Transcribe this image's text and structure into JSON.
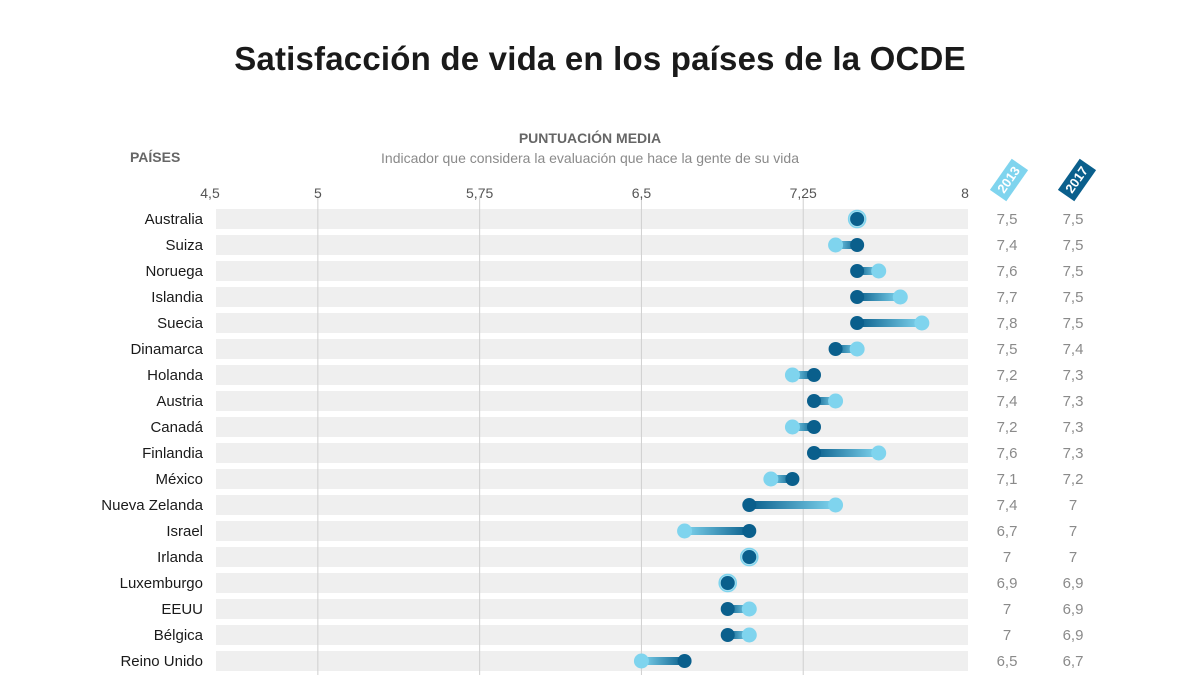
{
  "title": "Satisfacción de vida en los países de la OCDE",
  "header": {
    "countries_label": "PAÍSES",
    "measure_label": "PUNTUACIÓN MEDIA",
    "measure_desc": "Indicador que considera la evaluación que hace la gente de su vida",
    "year_a": "2013",
    "year_b": "2017"
  },
  "colors": {
    "year_a": "#7fd4ee",
    "year_b": "#0a5f8c",
    "row_bg": "#efefef",
    "grid": "#cfcfcf"
  },
  "chart_data": {
    "type": "dumbbell",
    "xlim": [
      4.5,
      8
    ],
    "ticks": [
      {
        "value": 4.5,
        "label": "4,5"
      },
      {
        "value": 5,
        "label": "5"
      },
      {
        "value": 5.75,
        "label": "5,75"
      },
      {
        "value": 6.5,
        "label": "6,5"
      },
      {
        "value": 7.25,
        "label": "7,25"
      },
      {
        "value": 8,
        "label": "8"
      }
    ],
    "series": [
      {
        "name": "2013"
      },
      {
        "name": "2017"
      }
    ],
    "rows": [
      {
        "country": "Australia",
        "v2013": 7.5,
        "v2017": 7.5,
        "l2013": "7,5",
        "l2017": "7,5"
      },
      {
        "country": "Suiza",
        "v2013": 7.4,
        "v2017": 7.5,
        "l2013": "7,4",
        "l2017": "7,5"
      },
      {
        "country": "Noruega",
        "v2013": 7.6,
        "v2017": 7.5,
        "l2013": "7,6",
        "l2017": "7,5"
      },
      {
        "country": "Islandia",
        "v2013": 7.7,
        "v2017": 7.5,
        "l2013": "7,7",
        "l2017": "7,5"
      },
      {
        "country": "Suecia",
        "v2013": 7.8,
        "v2017": 7.5,
        "l2013": "7,8",
        "l2017": "7,5"
      },
      {
        "country": "Dinamarca",
        "v2013": 7.5,
        "v2017": 7.4,
        "l2013": "7,5",
        "l2017": "7,4"
      },
      {
        "country": "Holanda",
        "v2013": 7.2,
        "v2017": 7.3,
        "l2013": "7,2",
        "l2017": "7,3"
      },
      {
        "country": "Austria",
        "v2013": 7.4,
        "v2017": 7.3,
        "l2013": "7,4",
        "l2017": "7,3"
      },
      {
        "country": "Canadá",
        "v2013": 7.2,
        "v2017": 7.3,
        "l2013": "7,2",
        "l2017": "7,3"
      },
      {
        "country": "Finlandia",
        "v2013": 7.6,
        "v2017": 7.3,
        "l2013": "7,6",
        "l2017": "7,3"
      },
      {
        "country": "México",
        "v2013": 7.1,
        "v2017": 7.2,
        "l2013": "7,1",
        "l2017": "7,2"
      },
      {
        "country": "Nueva Zelanda",
        "v2013": 7.4,
        "v2017": 7.0,
        "l2013": "7,4",
        "l2017": "7"
      },
      {
        "country": "Israel",
        "v2013": 6.7,
        "v2017": 7.0,
        "l2013": "6,7",
        "l2017": "7"
      },
      {
        "country": "Irlanda",
        "v2013": 7.0,
        "v2017": 7.0,
        "l2013": "7",
        "l2017": "7"
      },
      {
        "country": "Luxemburgo",
        "v2013": 6.9,
        "v2017": 6.9,
        "l2013": "6,9",
        "l2017": "6,9"
      },
      {
        "country": "EEUU",
        "v2013": 7.0,
        "v2017": 6.9,
        "l2013": "7",
        "l2017": "6,9"
      },
      {
        "country": "Bélgica",
        "v2013": 7.0,
        "v2017": 6.9,
        "l2013": "7",
        "l2017": "6,9"
      },
      {
        "country": "Reino Unido",
        "v2013": 6.5,
        "v2017": 6.7,
        "l2013": "6,5",
        "l2017": "6,7"
      }
    ]
  }
}
